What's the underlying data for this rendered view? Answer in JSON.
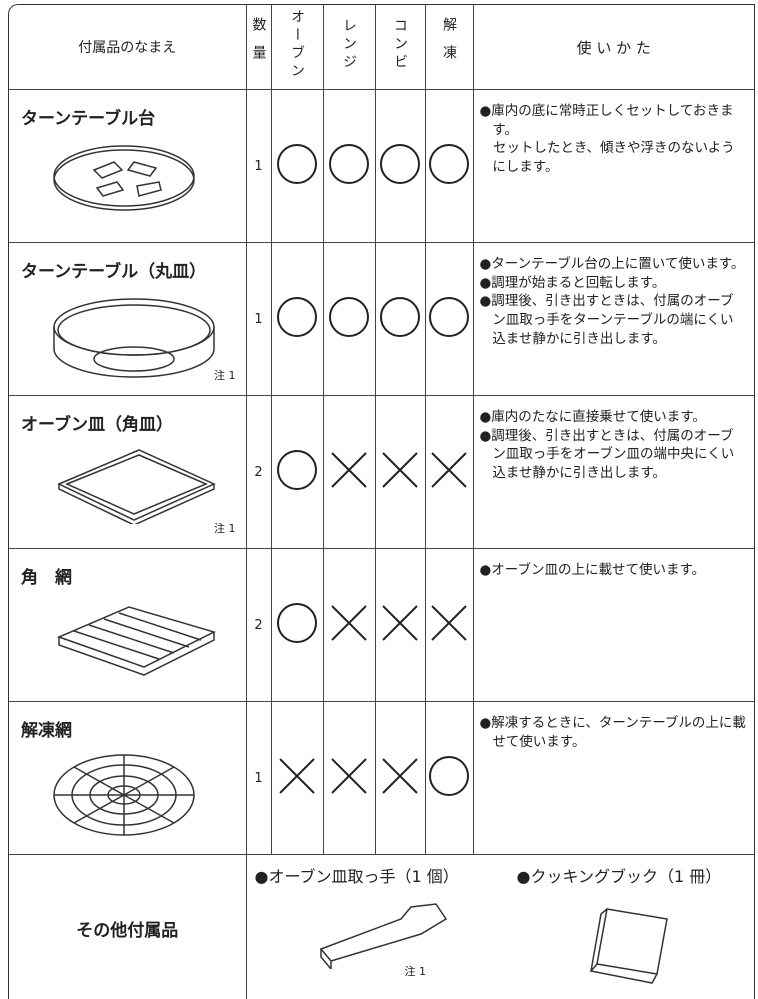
{
  "header": {
    "name": "付属品のなまえ",
    "qty": "数量",
    "modes": [
      "オーブン",
      "レンジ",
      "コンビ",
      "解凍"
    ],
    "usage": "使 い か た"
  },
  "rows": [
    {
      "name": "ターンテーブル台",
      "qty": "1",
      "marks": [
        true,
        true,
        true,
        true
      ],
      "usage": [
        "●庫内の底に常時正しくセットしておきます。",
        "　セットしたとき、傾きや浮きのないようにします。"
      ]
    },
    {
      "name": "ターンテーブル（丸皿）",
      "qty": "1",
      "marks": [
        true,
        true,
        true,
        true
      ],
      "note": "注 1",
      "usage": [
        "●ターンテーブル台の上に置いて使います。",
        "●調理が始まると回転します。",
        "●調理後、引き出すときは、付属のオーブン皿取っ手をターンテーブルの端にくい込ませ静かに引き出します。"
      ]
    },
    {
      "name": "オーブン皿（角皿）",
      "qty": "2",
      "marks": [
        true,
        false,
        false,
        false
      ],
      "note": "注 1",
      "usage": [
        "●庫内のたなに直接乗せて使います。",
        "●調理後、引き出すときは、付属のオーブン皿取っ手をオーブン皿の端中央にくい込ませ静かに引き出します。"
      ]
    },
    {
      "name": "角　網",
      "qty": "2",
      "marks": [
        true,
        false,
        false,
        false
      ],
      "usage": [
        "●オーブン皿の上に載せて使います。"
      ]
    },
    {
      "name": "解凍網",
      "qty": "1",
      "marks": [
        false,
        false,
        false,
        true
      ],
      "usage": [
        "●解凍するときに、ターンテーブルの上に載せて使います。"
      ]
    }
  ],
  "others": {
    "name": "その他付属品",
    "items": [
      {
        "label": "●オーブン皿取っ手（1 個）",
        "note": "注 1"
      },
      {
        "label": "●クッキングブック（1 冊）"
      }
    ]
  }
}
